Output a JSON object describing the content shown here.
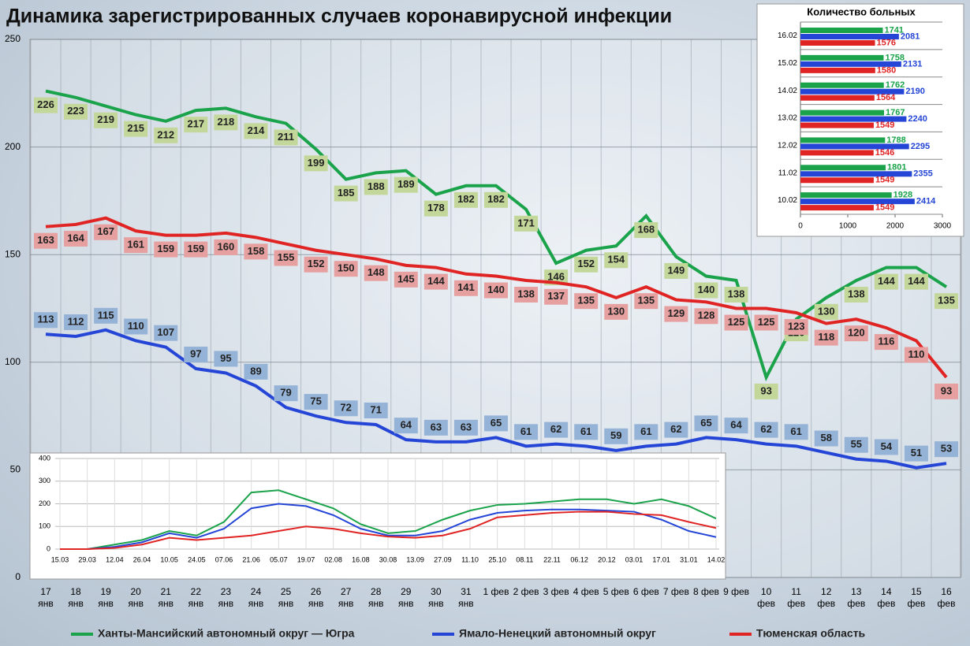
{
  "chart_data": [
    {
      "type": "line",
      "title": "Динамика зарегистрированных случаев коронавирусной инфекции",
      "categories": [
        "17\nянв",
        "18\nянв",
        "19\nянв",
        "20\nянв",
        "21\nянв",
        "22\nянв",
        "23\nянв",
        "24\nянв",
        "25\nянв",
        "26\nянв",
        "27\nянв",
        "28\nянв",
        "29\nянв",
        "30\nянв",
        "31\nянв",
        "1 фев",
        "2 фев",
        "3 фев",
        "4 фев",
        "5 фев",
        "6 фев",
        "7 фев",
        "8 фев",
        "9 фев",
        "10\nфев",
        "11\nфев",
        "12\nфев",
        "13\nфев",
        "14\nфев",
        "15\nфев",
        "16\nфев"
      ],
      "series": [
        {
          "name": "Ханты-Мансийский автономный округ — Югра",
          "color": "#1aa34a",
          "values": [
            226,
            223,
            219,
            215,
            212,
            217,
            218,
            214,
            211,
            199,
            185,
            188,
            189,
            178,
            182,
            182,
            171,
            146,
            152,
            154,
            168,
            149,
            140,
            138,
            93,
            120,
            130,
            138,
            144,
            144,
            135
          ]
        },
        {
          "name": "Ямало-Ненецкий автономный округ",
          "color": "#2445d6",
          "values": [
            113,
            112,
            115,
            110,
            107,
            97,
            95,
            89,
            79,
            75,
            72,
            71,
            64,
            63,
            63,
            65,
            61,
            62,
            61,
            59,
            61,
            62,
            65,
            64,
            62,
            61,
            58,
            55,
            54,
            51,
            53
          ]
        },
        {
          "name": "Тюменская область",
          "color": "#e02424",
          "values": [
            163,
            164,
            167,
            161,
            159,
            159,
            160,
            158,
            155,
            152,
            150,
            148,
            145,
            144,
            141,
            140,
            138,
            137,
            135,
            130,
            135,
            129,
            128,
            125,
            125,
            123,
            118,
            120,
            116,
            110,
            93
          ]
        }
      ],
      "ylim": [
        0,
        250
      ],
      "yticks": [
        0,
        50,
        100,
        150,
        200,
        250
      ],
      "grid": true
    },
    {
      "type": "hbar",
      "title": "Количество больных",
      "categories": [
        "16.02",
        "15.02",
        "14.02",
        "13.02",
        "12.02",
        "11.02",
        "10.02"
      ],
      "series": [
        {
          "color": "#1aa34a",
          "values": [
            1741,
            1758,
            1762,
            1767,
            1788,
            1801,
            1928
          ]
        },
        {
          "color": "#2445d6",
          "values": [
            2081,
            2131,
            2190,
            2240,
            2295,
            2355,
            2414
          ]
        },
        {
          "color": "#e02424",
          "values": [
            1576,
            1580,
            1564,
            1549,
            1546,
            1549,
            1549
          ]
        }
      ],
      "xlim": [
        0,
        3000
      ],
      "xticks": [
        0,
        1000,
        2000,
        3000
      ]
    },
    {
      "type": "line",
      "categories": [
        "15.03",
        "29.03",
        "12.04",
        "26.04",
        "10.05",
        "24.05",
        "07.06",
        "21.06",
        "05.07",
        "19.07",
        "02.08",
        "16.08",
        "30.08",
        "13.09",
        "27.09",
        "11.10",
        "25.10",
        "08.11",
        "22.11",
        "06.12",
        "20.12",
        "03.01",
        "17.01",
        "31.01",
        "14.02"
      ],
      "series": [
        {
          "color": "#1aa34a",
          "values": [
            0,
            0,
            20,
            40,
            80,
            60,
            120,
            250,
            260,
            220,
            180,
            110,
            70,
            80,
            130,
            170,
            195,
            200,
            210,
            220,
            220,
            200,
            220,
            190,
            135
          ]
        },
        {
          "color": "#2445d6",
          "values": [
            0,
            0,
            10,
            30,
            70,
            50,
            90,
            180,
            200,
            190,
            150,
            90,
            60,
            60,
            80,
            130,
            160,
            170,
            175,
            175,
            170,
            165,
            130,
            80,
            53
          ]
        },
        {
          "color": "#e02424",
          "values": [
            0,
            0,
            5,
            20,
            50,
            40,
            50,
            60,
            80,
            100,
            90,
            70,
            55,
            50,
            60,
            90,
            140,
            150,
            160,
            165,
            165,
            155,
            150,
            120,
            93
          ]
        }
      ],
      "ylim": [
        0,
        400
      ],
      "yticks": [
        0,
        100,
        200,
        300,
        400
      ],
      "grid": true
    }
  ]
}
